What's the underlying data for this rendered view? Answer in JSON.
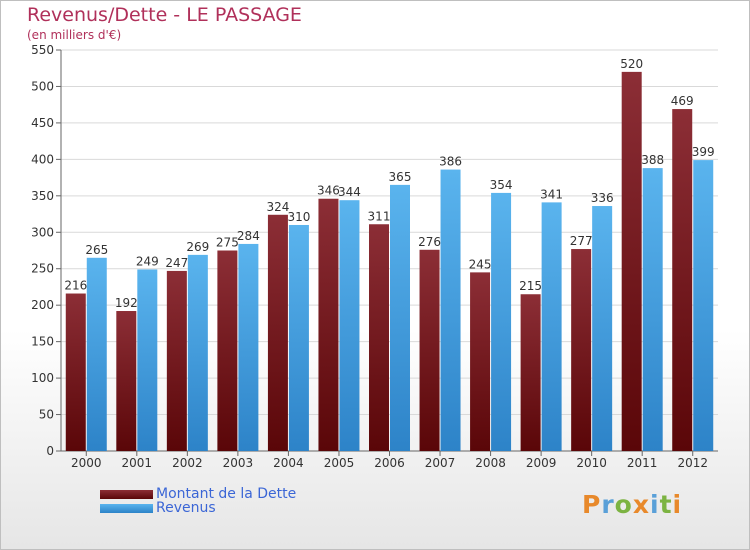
{
  "header": {
    "title": "Revenus/Dette - LE PASSAGE",
    "subtitle": "(en milliers d'€)"
  },
  "colors": {
    "dette": "#7a1a1f",
    "revenus": "#3d9ae0",
    "title": "#b0305a",
    "legend_text": "#3b66d6"
  },
  "chart_data": {
    "type": "bar",
    "title": "Revenus/Dette - LE PASSAGE",
    "subtitle": "(en milliers d'€)",
    "categories": [
      "2000",
      "2001",
      "2002",
      "2003",
      "2004",
      "2005",
      "2006",
      "2007",
      "2008",
      "2009",
      "2010",
      "2011",
      "2012"
    ],
    "series": [
      {
        "name": "Montant de la Dette",
        "values": [
          216,
          192,
          247,
          275,
          324,
          346,
          311,
          276,
          245,
          215,
          277,
          520,
          469
        ]
      },
      {
        "name": "Revenus",
        "values": [
          265,
          249,
          269,
          284,
          310,
          344,
          365,
          386,
          354,
          341,
          336,
          388,
          399
        ]
      }
    ],
    "ylim": [
      0,
      550
    ],
    "yticks": [
      0,
      50,
      100,
      150,
      200,
      250,
      300,
      350,
      400,
      450,
      500,
      550
    ],
    "grid": true,
    "legend": "bottom-left"
  },
  "legend": [
    {
      "label": "Montant de la Dette"
    },
    {
      "label": "Revenus"
    }
  ],
  "logo": {
    "text": "Proxiti"
  }
}
